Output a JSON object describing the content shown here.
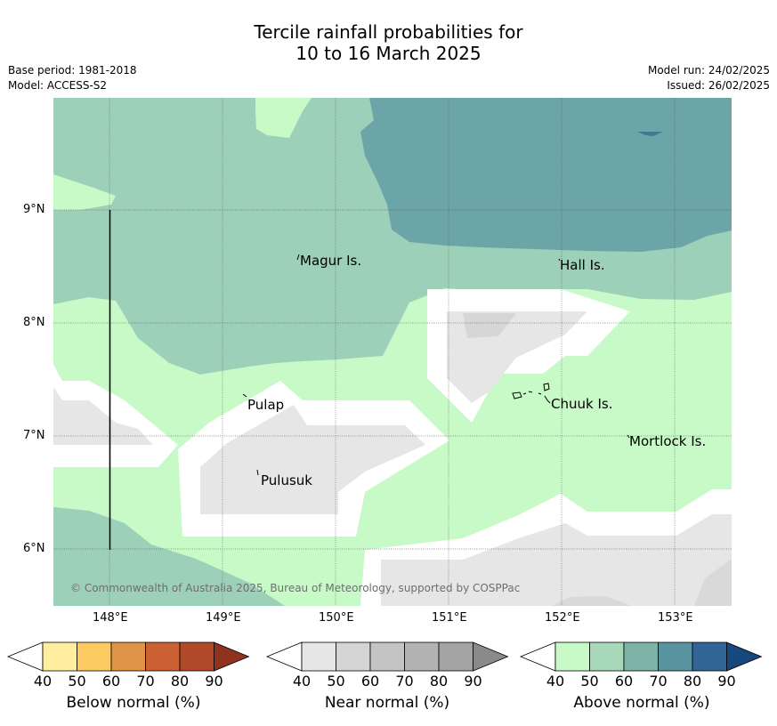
{
  "title_line1": "Tercile rainfall probabilities for",
  "title_line2": "10 to 16 March 2025",
  "base_period": "Base period: 1981-2018",
  "model": "Model: ACCESS-S2",
  "model_run": "Model run: 24/02/2025",
  "issued": "Issued: 26/02/2025",
  "copyright": "© Commonwealth of Australia 2025, Bureau of Meteorology, supported by COSPPac",
  "lat_labels": [
    "9°N",
    "8°N",
    "7°N",
    "6°N"
  ],
  "lon_labels": [
    "148°E",
    "149°E",
    "150°E",
    "151°E",
    "152°E",
    "153°E"
  ],
  "places": {
    "magur": "Magur Is.",
    "hall": "Hall Is.",
    "pulap": "Pulap",
    "chuuk": "Chuuk Is.",
    "mortlock": "Mortlock Is.",
    "pulusuk": "Pulusuk"
  },
  "colorbars": {
    "ticks": [
      "40",
      "50",
      "60",
      "70",
      "80",
      "90"
    ],
    "below": {
      "label": "Below normal (%)",
      "colors": [
        "#ffeda0",
        "#fecb62",
        "#e09447",
        "#cb6132",
        "#b04a28",
        "#8f3220"
      ]
    },
    "near": {
      "label": "Near normal (%)",
      "colors": [
        "#e6e6e6",
        "#d4d4d4",
        "#c4c4c4",
        "#b3b3b3",
        "#a3a3a3",
        "#8a8a8a"
      ]
    },
    "above": {
      "label": "Above normal (%)",
      "colors": [
        "#c8fac8",
        "#a6d8b9",
        "#7db4a7",
        "#5a94a1",
        "#326597",
        "#16487d"
      ]
    }
  }
}
